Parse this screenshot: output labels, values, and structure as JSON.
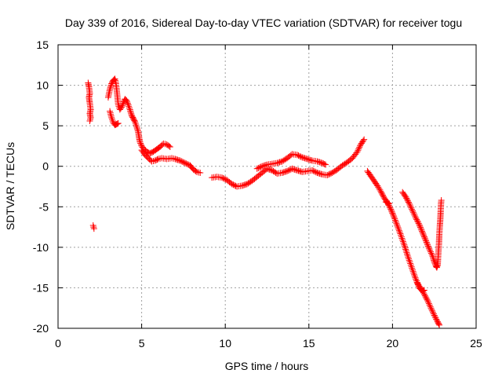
{
  "chart_data": {
    "type": "scatter",
    "title": "Day 339 of 2016, Sidereal Day-to-day VTEC variation (SDTVAR) for receiver togu",
    "xlabel": "GPS time / hours",
    "ylabel": "SDTVAR / TECUs",
    "xlim": [
      0,
      25
    ],
    "ylim": [
      -20,
      15
    ],
    "xticks": [
      0,
      5,
      10,
      15,
      20,
      25
    ],
    "yticks": [
      -20,
      -15,
      -10,
      -5,
      0,
      5,
      10,
      15
    ],
    "grid": true,
    "marker": "+",
    "series": [
      {
        "name": "SDTVAR",
        "color": "#ff0000",
        "segments": [
          [
            [
              1.8,
              10.3
            ],
            [
              1.85,
              9.8
            ],
            [
              1.9,
              9.0
            ],
            [
              1.85,
              8.5
            ],
            [
              1.9,
              7.8
            ],
            [
              1.95,
              7.0
            ],
            [
              1.9,
              6.5
            ],
            [
              1.95,
              6.0
            ],
            [
              1.9,
              5.6
            ]
          ],
          [
            [
              2.1,
              -7.3
            ],
            [
              2.15,
              -7.7
            ]
          ],
          [
            [
              3.0,
              8.5
            ],
            [
              3.1,
              9.5
            ],
            [
              3.2,
              10.2
            ],
            [
              3.3,
              10.6
            ],
            [
              3.4,
              10.8
            ],
            [
              3.45,
              10.4
            ],
            [
              3.5,
              9.6
            ],
            [
              3.55,
              8.6
            ],
            [
              3.6,
              7.6
            ],
            [
              3.7,
              7.0
            ],
            [
              3.8,
              7.3
            ],
            [
              3.9,
              7.8
            ],
            [
              4.0,
              8.3
            ],
            [
              4.1,
              8.1
            ],
            [
              4.2,
              7.6
            ],
            [
              4.3,
              7.0
            ],
            [
              4.4,
              6.3
            ],
            [
              4.5,
              5.9
            ],
            [
              4.6,
              5.5
            ],
            [
              4.7,
              4.9
            ],
            [
              4.8,
              4.2
            ],
            [
              4.85,
              3.5
            ],
            [
              4.9,
              3.0
            ],
            [
              5.0,
              2.5
            ],
            [
              5.1,
              2.2
            ],
            [
              5.3,
              1.8
            ],
            [
              5.5,
              1.6
            ],
            [
              5.7,
              1.8
            ],
            [
              5.9,
              2.1
            ],
            [
              6.1,
              2.4
            ],
            [
              6.3,
              2.8
            ],
            [
              6.5,
              2.7
            ],
            [
              6.7,
              2.4
            ]
          ],
          [
            [
              3.1,
              6.8
            ],
            [
              3.2,
              6.0
            ],
            [
              3.3,
              5.4
            ],
            [
              3.4,
              5.1
            ],
            [
              3.5,
              5.2
            ],
            [
              3.6,
              5.3
            ]
          ],
          [
            [
              5.0,
              2.0
            ],
            [
              5.2,
              1.4
            ],
            [
              5.4,
              1.0
            ],
            [
              5.6,
              0.6
            ],
            [
              5.8,
              0.7
            ],
            [
              6.0,
              0.9
            ],
            [
              6.2,
              1.0
            ],
            [
              6.5,
              0.9
            ],
            [
              6.8,
              1.0
            ],
            [
              7.0,
              0.9
            ],
            [
              7.3,
              0.7
            ],
            [
              7.6,
              0.4
            ],
            [
              7.9,
              0.1
            ],
            [
              8.1,
              -0.4
            ],
            [
              8.3,
              -0.7
            ],
            [
              8.5,
              -0.8
            ]
          ],
          [
            [
              9.2,
              -1.4
            ],
            [
              9.5,
              -1.3
            ],
            [
              9.8,
              -1.4
            ],
            [
              10.1,
              -1.7
            ],
            [
              10.4,
              -2.2
            ],
            [
              10.7,
              -2.5
            ],
            [
              11.0,
              -2.4
            ],
            [
              11.3,
              -2.2
            ],
            [
              11.6,
              -1.8
            ],
            [
              11.9,
              -1.3
            ],
            [
              12.2,
              -0.8
            ],
            [
              12.5,
              -0.3
            ],
            [
              12.8,
              -0.5
            ],
            [
              13.1,
              -0.9
            ],
            [
              13.4,
              -0.8
            ],
            [
              13.7,
              -0.6
            ],
            [
              14.0,
              -0.3
            ],
            [
              14.3,
              -0.5
            ],
            [
              14.6,
              -0.7
            ],
            [
              14.9,
              -0.6
            ],
            [
              15.2,
              -0.5
            ],
            [
              15.5,
              -0.8
            ],
            [
              15.8,
              -1.0
            ],
            [
              16.1,
              -1.1
            ],
            [
              16.4,
              -0.8
            ],
            [
              16.7,
              -0.4
            ],
            [
              17.0,
              0.1
            ],
            [
              17.3,
              0.5
            ],
            [
              17.6,
              1.0
            ],
            [
              17.9,
              1.8
            ],
            [
              18.1,
              2.7
            ],
            [
              18.3,
              3.3
            ]
          ],
          [
            [
              11.9,
              -0.3
            ],
            [
              12.2,
              0.0
            ],
            [
              12.5,
              0.2
            ],
            [
              12.8,
              0.3
            ],
            [
              13.1,
              0.4
            ],
            [
              13.4,
              0.6
            ],
            [
              13.7,
              1.0
            ],
            [
              14.0,
              1.5
            ],
            [
              14.3,
              1.4
            ],
            [
              14.6,
              1.1
            ],
            [
              14.9,
              0.9
            ],
            [
              15.2,
              0.7
            ],
            [
              15.5,
              0.6
            ],
            [
              15.8,
              0.4
            ],
            [
              16.0,
              0.2
            ]
          ],
          [
            [
              18.5,
              -0.6
            ],
            [
              18.7,
              -1.2
            ],
            [
              18.9,
              -1.8
            ],
            [
              19.1,
              -2.4
            ],
            [
              19.3,
              -3.1
            ],
            [
              19.5,
              -3.9
            ],
            [
              19.7,
              -4.5
            ],
            [
              19.9,
              -5.3
            ],
            [
              20.1,
              -6.3
            ],
            [
              20.3,
              -7.4
            ],
            [
              20.5,
              -8.5
            ],
            [
              20.7,
              -9.7
            ],
            [
              20.9,
              -11.0
            ],
            [
              21.1,
              -12.2
            ],
            [
              21.3,
              -13.4
            ],
            [
              21.5,
              -14.5
            ],
            [
              21.7,
              -15.1
            ],
            [
              21.9,
              -15.8
            ],
            [
              22.1,
              -16.6
            ],
            [
              22.3,
              -17.5
            ],
            [
              22.5,
              -18.4
            ],
            [
              22.7,
              -19.2
            ],
            [
              22.8,
              -19.6
            ]
          ],
          [
            [
              19.6,
              -4.4
            ],
            [
              19.8,
              -4.6
            ]
          ],
          [
            [
              20.6,
              -3.2
            ],
            [
              20.8,
              -3.8
            ],
            [
              21.0,
              -4.6
            ],
            [
              21.2,
              -5.5
            ],
            [
              21.4,
              -6.4
            ],
            [
              21.6,
              -7.2
            ],
            [
              21.8,
              -8.2
            ],
            [
              22.0,
              -9.2
            ],
            [
              22.2,
              -10.2
            ],
            [
              22.4,
              -11.1
            ],
            [
              22.5,
              -11.8
            ],
            [
              22.6,
              -12.3
            ],
            [
              22.65,
              -12.5
            ],
            [
              22.7,
              -12.2
            ],
            [
              22.72,
              -11.5
            ],
            [
              22.75,
              -10.5
            ],
            [
              22.78,
              -9.5
            ],
            [
              22.8,
              -8.4
            ],
            [
              22.83,
              -7.4
            ],
            [
              22.86,
              -6.5
            ],
            [
              22.88,
              -5.6
            ],
            [
              22.9,
              -4.6
            ],
            [
              22.92,
              -4.2
            ]
          ],
          [
            [
              21.5,
              -14.4
            ],
            [
              21.6,
              -15.0
            ],
            [
              21.7,
              -15.2
            ],
            [
              21.8,
              -15.4
            ],
            [
              21.9,
              -15.3
            ]
          ]
        ]
      }
    ]
  }
}
